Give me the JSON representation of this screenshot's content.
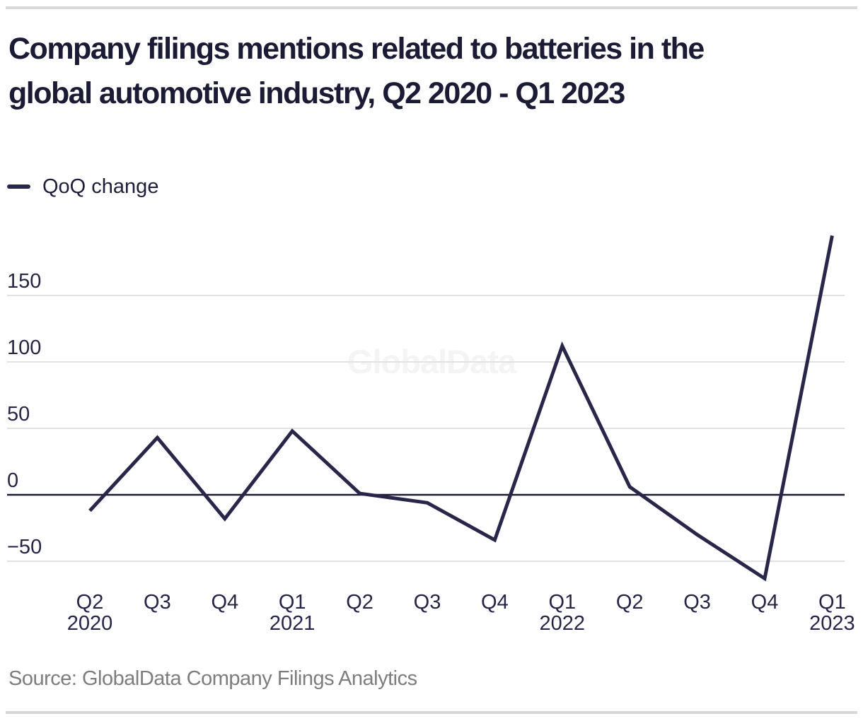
{
  "header": {
    "title_line1": "Company filings mentions related to batteries in the",
    "title_line2": "global automotive industry, Q2 2020 - Q1 2023"
  },
  "legend": {
    "label": "QoQ change"
  },
  "watermark": {
    "text": "GlobalData"
  },
  "source": {
    "text": "Source: GlobalData Company Filings Analytics"
  },
  "colors": {
    "line": "#282649",
    "zero_line": "#1b1b35",
    "grid": "#e2e2e2",
    "title_text": "#1b1b35",
    "axis_text": "#262547",
    "source_text": "#7d7d7d",
    "divider": "#d8d8d8",
    "watermark_text": "#f4f4f4"
  },
  "chart_data": {
    "type": "line",
    "title": "Company filings mentions related to batteries in the global automotive industry, Q2 2020 - Q1 2023",
    "categories": [
      {
        "quarter": "Q2",
        "year": "2020"
      },
      {
        "quarter": "Q3",
        "year": ""
      },
      {
        "quarter": "Q4",
        "year": ""
      },
      {
        "quarter": "Q1",
        "year": "2021"
      },
      {
        "quarter": "Q2",
        "year": ""
      },
      {
        "quarter": "Q3",
        "year": ""
      },
      {
        "quarter": "Q4",
        "year": ""
      },
      {
        "quarter": "Q1",
        "year": "2022"
      },
      {
        "quarter": "Q2",
        "year": ""
      },
      {
        "quarter": "Q3",
        "year": ""
      },
      {
        "quarter": "Q4",
        "year": ""
      },
      {
        "quarter": "Q1",
        "year": "2023"
      }
    ],
    "series": [
      {
        "name": "QoQ change",
        "values": [
          -12,
          43,
          -18,
          48,
          1,
          -6,
          -34,
          112,
          6,
          -30,
          -63,
          195
        ]
      }
    ],
    "yticks": [
      150,
      100,
      50,
      0,
      -50
    ],
    "ylim": [
      -75,
      205
    ],
    "xlabel": "",
    "ylabel": "",
    "grid": "horizontal-only",
    "legend_position": "top-left"
  }
}
